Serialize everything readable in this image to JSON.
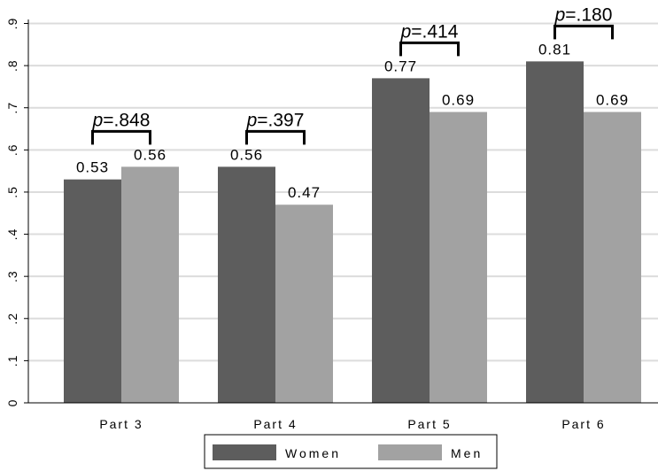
{
  "chart_data": {
    "type": "bar",
    "categories": [
      "Part 3",
      "Part 4",
      "Part 5",
      "Part 6"
    ],
    "series": [
      {
        "name": "Women",
        "values": [
          0.53,
          0.56,
          0.77,
          0.81
        ],
        "labels": [
          "0.53",
          "0.56",
          "0.77",
          "0.81"
        ],
        "color": "#5d5d5d"
      },
      {
        "name": "Men",
        "values": [
          0.56,
          0.47,
          0.69,
          0.69
        ],
        "labels": [
          "0.56",
          "0.47",
          "0.69",
          "0.69"
        ],
        "color": "#a2a2a2"
      }
    ],
    "annotations": [
      {
        "prefix": "p",
        "value": "=.848"
      },
      {
        "prefix": "p",
        "value": "=.397"
      },
      {
        "prefix": "p",
        "value": "=.414"
      },
      {
        "prefix": "p",
        "value": "=.180"
      }
    ],
    "y_ticks": [
      "0",
      ".1",
      ".2",
      ".3",
      ".4",
      ".5",
      ".6",
      ".7",
      ".8",
      ".9"
    ],
    "ylim": [
      0,
      0.9
    ],
    "grid": true,
    "legend_position": "bottom"
  }
}
